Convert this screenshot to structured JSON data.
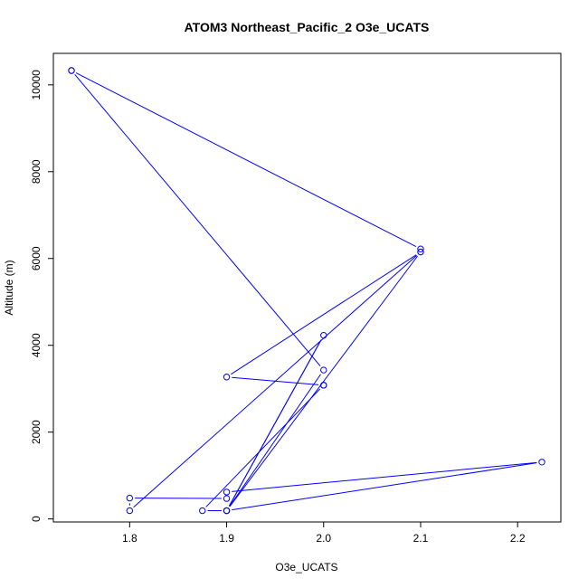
{
  "chart_data": {
    "type": "line",
    "title": "ATOM3 Northeast_Pacific_2 O3e_UCATS",
    "xlabel": "O3e_UCATS",
    "ylabel": "Altitude (m)",
    "xlim": [
      1.74,
      2.225
    ],
    "ylim": [
      180,
      10330
    ],
    "x_ticks": [
      1.8,
      1.9,
      2.0,
      2.1,
      2.2
    ],
    "x_tick_labels": [
      "1.8",
      "1.9",
      "2.0",
      "2.1",
      "2.2"
    ],
    "y_ticks": [
      0,
      2000,
      4000,
      6000,
      8000,
      10000
    ],
    "y_tick_labels": [
      "0",
      "2000",
      "4000",
      "6000",
      "8000",
      "10000"
    ],
    "grid": false,
    "line_color": "#0000ff",
    "marker": "open-circle",
    "series": [
      {
        "x": [
          1.74,
          2.1,
          2.1,
          1.8,
          1.8,
          1.9,
          1.9,
          2.225,
          1.9,
          2.0,
          1.9,
          1.875,
          2.0,
          2.0,
          1.9,
          2.1,
          1.9,
          2.0,
          1.74
        ],
        "y": [
          10330,
          6220,
          6150,
          190,
          480,
          470,
          620,
          1310,
          190,
          4230,
          190,
          190,
          3080,
          3080,
          3270,
          6150,
          190,
          3430,
          10330
        ]
      }
    ]
  }
}
